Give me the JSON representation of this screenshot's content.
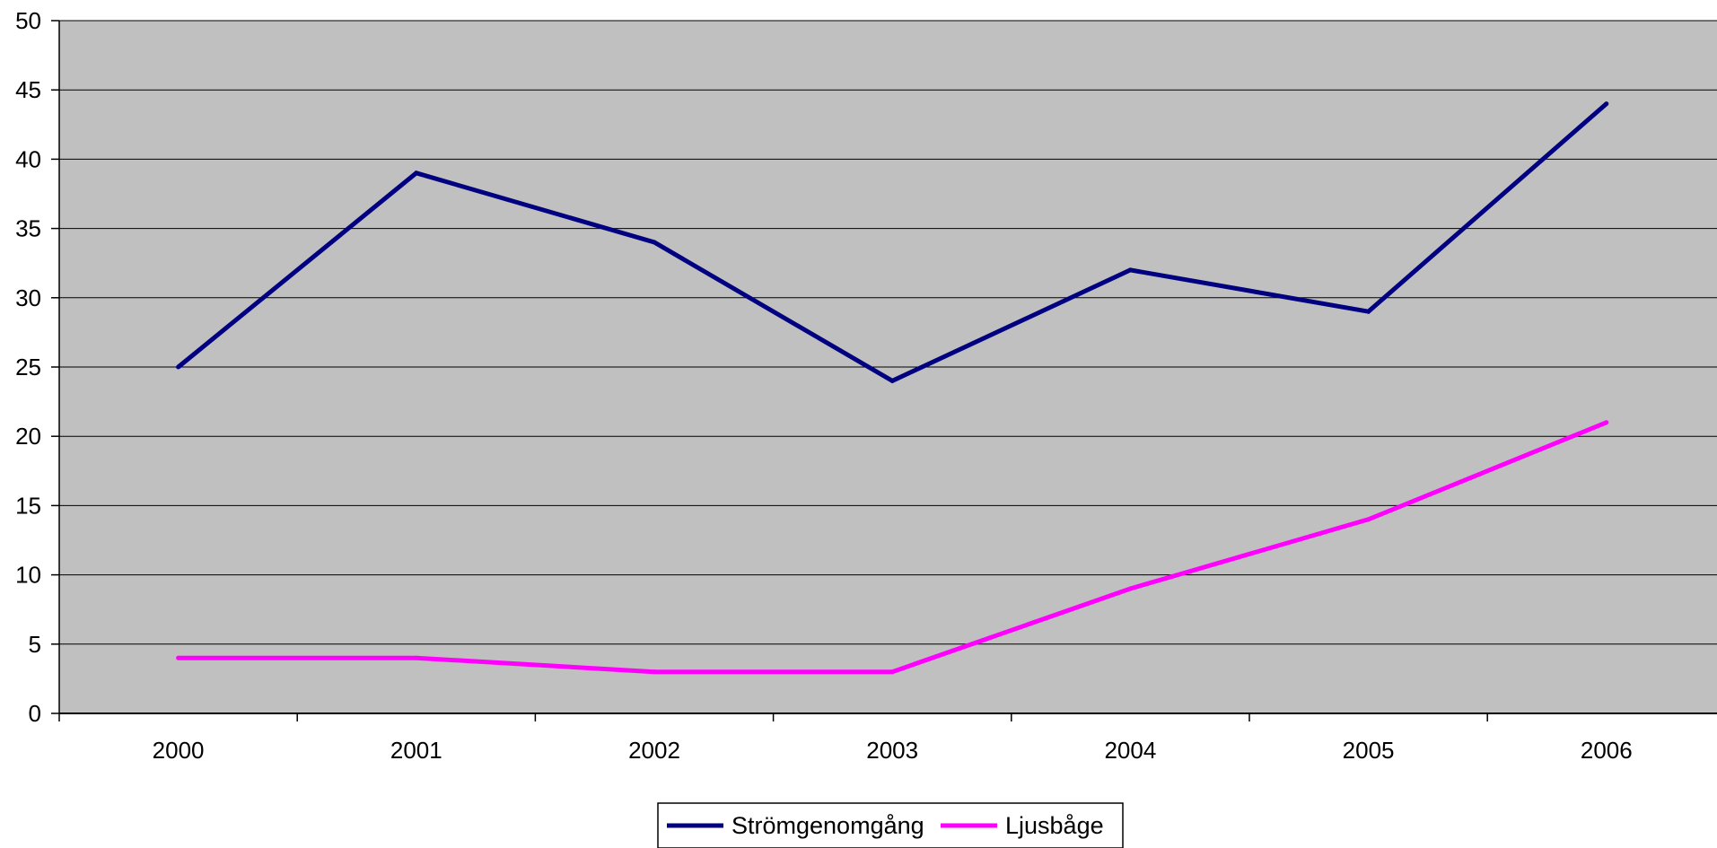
{
  "chart_data": {
    "type": "line",
    "title": "",
    "xlabel": "",
    "ylabel": "",
    "categories": [
      "2000",
      "2001",
      "2002",
      "2003",
      "2004",
      "2005",
      "2006"
    ],
    "ylim": [
      0,
      50
    ],
    "yticks": [
      0,
      5,
      10,
      15,
      20,
      25,
      30,
      35,
      40,
      45,
      50
    ],
    "grid": true,
    "legend_position": "bottom",
    "plot_background": "#C0C0C0",
    "series": [
      {
        "name": "Strömgenomgång",
        "color": "#000080",
        "values": [
          25,
          39,
          34,
          24,
          32,
          29,
          44
        ]
      },
      {
        "name": "Ljusbåge",
        "color": "#FF00FF",
        "values": [
          4,
          4,
          3,
          3,
          9,
          14,
          21
        ]
      }
    ]
  }
}
